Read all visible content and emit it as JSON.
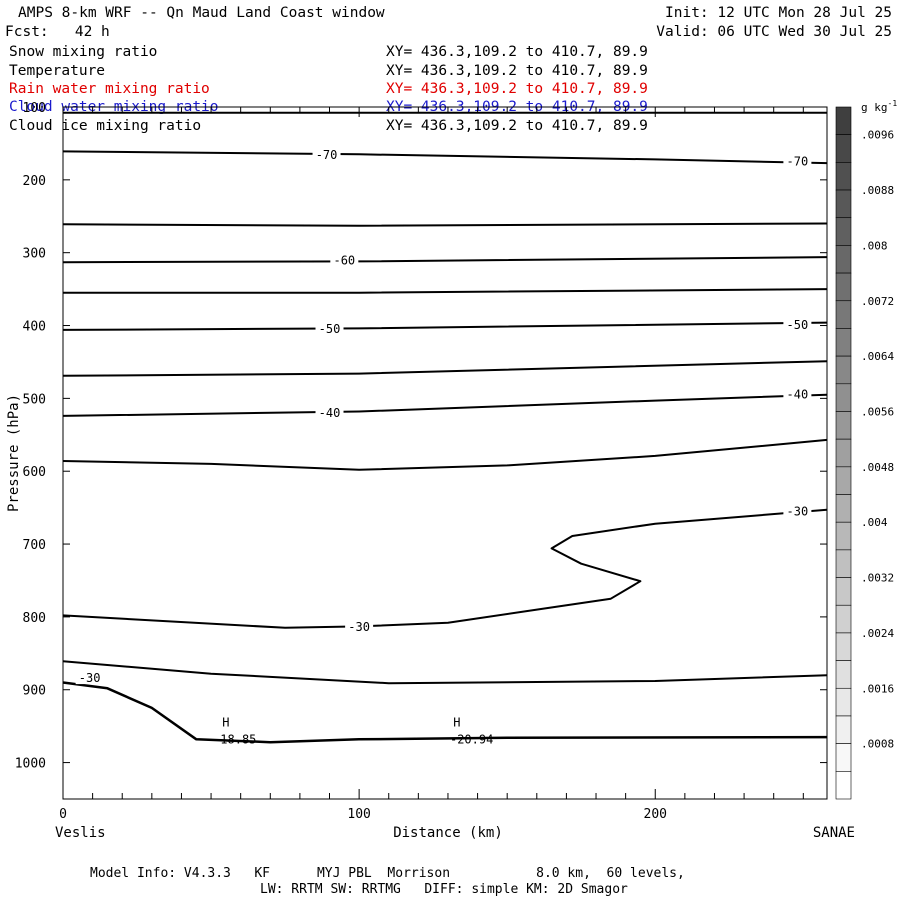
{
  "header": {
    "title": "AMPS 8-km WRF -- Qn Maud Land Coast window",
    "init": "Init: 12 UTC Mon 28 Jul 25",
    "fcst": "Fcst:   42 h",
    "valid": "Valid: 06 UTC Wed 30 Jul 25"
  },
  "fields": [
    {
      "name": "Snow mixing ratio",
      "xy": "XY= 436.3,109.2 to 410.7, 89.9",
      "color": "#000000"
    },
    {
      "name": "Temperature",
      "xy": "XY= 436.3,109.2 to 410.7, 89.9",
      "color": "#000000"
    },
    {
      "name": "Rain water mixing ratio",
      "xy": "XY= 436.3,109.2 to 410.7, 89.9",
      "color": "#e00000"
    },
    {
      "name": "Cloud water mixing ratio",
      "xy": "XY= 436.3,109.2 to 410.7, 89.9",
      "color": "#1a1acc"
    },
    {
      "name": "Cloud ice mixing ratio",
      "xy": "XY= 436.3,109.2 to 410.7, 89.9",
      "color": "#000000"
    }
  ],
  "footer": {
    "line1": "Model Info: V4.3.3   KF      MYJ PBL  Morrison           8.0 km,  60 levels,",
    "line2": "LW: RRTM SW: RRTMG   DIFF: simple KM: 2D Smagor"
  },
  "chart_data": {
    "type": "line",
    "xlabel": "Distance (km)",
    "ylabel": "Pressure (hPa)",
    "xlim": [
      0,
      258
    ],
    "ylim": [
      1050,
      100
    ],
    "x_ticks": [
      0,
      100,
      200
    ],
    "y_ticks": [
      100,
      200,
      300,
      400,
      500,
      600,
      700,
      800,
      900,
      1000
    ],
    "left_endpoint": "Veslis",
    "right_endpoint": "SANAE",
    "colorbar": {
      "unit": "g kg",
      "unit_superscript": "-1",
      "ticks": [
        ".0096",
        ".0088",
        ".008",
        ".0072",
        ".0064",
        ".0056",
        ".0048",
        ".004",
        ".0032",
        ".0024",
        ".0016",
        ".0008"
      ],
      "range": [
        0,
        0.01
      ],
      "step": 0.0004,
      "colors": [
        "#3f3f3f",
        "#484848",
        "#505050",
        "#585858",
        "#606060",
        "#686868",
        "#707070",
        "#787878",
        "#808080",
        "#888888",
        "#909090",
        "#989898",
        "#a0a0a0",
        "#a8a8a8",
        "#b0b0b0",
        "#b8b8b8",
        "#c0c0c0",
        "#c8c8c8",
        "#d0d0d0",
        "#d8d8d8",
        "#e0e0e0",
        "#e8e8e8",
        "#f0f0f0",
        "#f8f8f8",
        "#ffffff"
      ]
    },
    "isotherms": [
      {
        "label": "-70",
        "points": [
          [
            0,
            161
          ],
          [
            100,
            165
          ],
          [
            200,
            172
          ],
          [
            258,
            177
          ]
        ],
        "labels_at": [
          [
            89,
            166
          ],
          [
            248,
            175
          ]
        ]
      },
      {
        "label": "",
        "points": [
          [
            0,
            108
          ],
          [
            258,
            108
          ]
        ],
        "labels_at": []
      },
      {
        "label": "",
        "points": [
          [
            0,
            261
          ],
          [
            100,
            263
          ],
          [
            258,
            260
          ]
        ],
        "labels_at": []
      },
      {
        "label": "-60",
        "points": [
          [
            0,
            313
          ],
          [
            100,
            312
          ],
          [
            258,
            306
          ]
        ],
        "labels_at": [
          [
            95,
            311
          ]
        ]
      },
      {
        "label": "",
        "points": [
          [
            0,
            355
          ],
          [
            100,
            355
          ],
          [
            258,
            350
          ]
        ],
        "labels_at": []
      },
      {
        "label": "-50",
        "points": [
          [
            0,
            406
          ],
          [
            100,
            404
          ],
          [
            258,
            396
          ]
        ],
        "labels_at": [
          [
            90,
            405
          ],
          [
            248,
            399
          ]
        ]
      },
      {
        "label": "",
        "points": [
          [
            0,
            469
          ],
          [
            100,
            466
          ],
          [
            258,
            449
          ]
        ],
        "labels_at": []
      },
      {
        "label": "-40",
        "points": [
          [
            0,
            524
          ],
          [
            100,
            518
          ],
          [
            200,
            503
          ],
          [
            258,
            495
          ]
        ],
        "labels_at": [
          [
            90,
            520
          ],
          [
            248,
            495
          ]
        ]
      },
      {
        "label": "",
        "points": [
          [
            0,
            586
          ],
          [
            50,
            590
          ],
          [
            100,
            598
          ],
          [
            150,
            592
          ],
          [
            200,
            579
          ],
          [
            258,
            557
          ]
        ],
        "labels_at": []
      },
      {
        "label": "-30",
        "points": [
          [
            0,
            798
          ],
          [
            75,
            815
          ],
          [
            100,
            813
          ],
          [
            130,
            808
          ],
          [
            160,
            790
          ],
          [
            185,
            775
          ],
          [
            195,
            751
          ],
          [
            175,
            727
          ],
          [
            165,
            706
          ],
          [
            172,
            689
          ],
          [
            200,
            672
          ],
          [
            258,
            653
          ]
        ],
        "labels_at": [
          [
            100,
            814
          ],
          [
            248,
            655
          ]
        ]
      },
      {
        "label": "",
        "points": [
          [
            0,
            861
          ],
          [
            50,
            878
          ],
          [
            110,
            891
          ],
          [
            200,
            888
          ],
          [
            258,
            880
          ]
        ],
        "labels_at": []
      },
      {
        "label": "-30",
        "points": [
          [
            0,
            890
          ],
          [
            15,
            898
          ],
          [
            30,
            925
          ],
          [
            45,
            968
          ],
          [
            70,
            972
          ],
          [
            100,
            968
          ],
          [
            150,
            966
          ],
          [
            258,
            965
          ]
        ],
        "labels_at": [
          [
            9,
            884
          ]
        ]
      }
    ],
    "annotations": [
      {
        "text": "H",
        "x": 55,
        "y": 945
      },
      {
        "text": "-18.85",
        "x": 58,
        "y": 968
      },
      {
        "text": "H",
        "x": 133,
        "y": 945
      },
      {
        "text": "-20.94",
        "x": 138,
        "y": 968
      }
    ]
  }
}
